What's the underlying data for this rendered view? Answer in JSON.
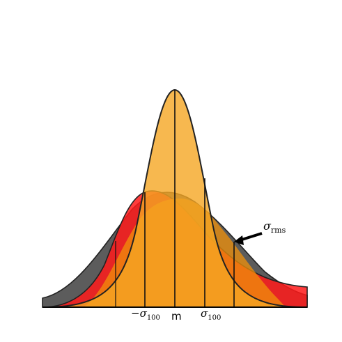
{
  "labels": {
    "center": "m",
    "sigma_100_minus": "−σ",
    "sigma_100_plus": "σ",
    "sigma_100_sub": "100",
    "sigma_rms": "σ",
    "sigma_rms_sub": "rms"
  },
  "curves": {
    "gray_wide": {
      "color": "#4a4a4a",
      "alpha": 0.9
    },
    "red_medium": {
      "color": "#ff1a1a",
      "alpha": 0.85
    },
    "orange_wide_under": {
      "color": "#f0900a",
      "alpha": 0.75
    },
    "orange_narrow_peak": {
      "color": "#f5a623",
      "alpha": 0.8
    }
  },
  "colors": {
    "outline": "#222222",
    "arrow": "#000000",
    "baseline": "#000000"
  }
}
